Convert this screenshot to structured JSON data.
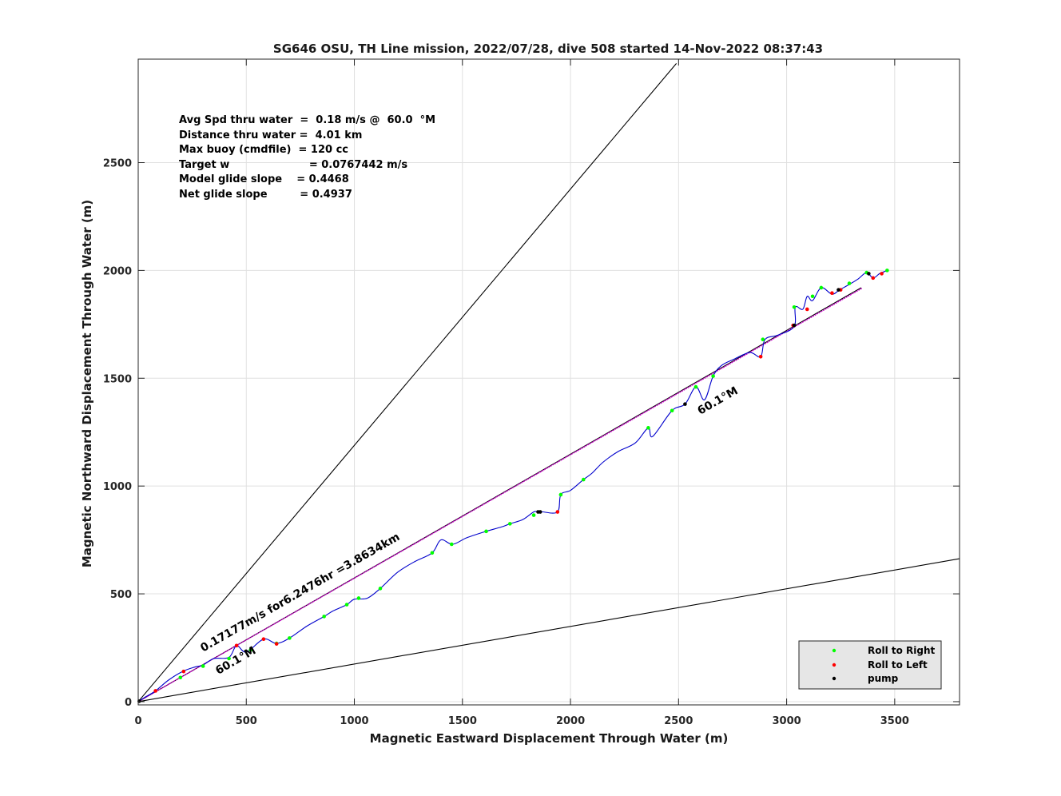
{
  "chart_data": {
    "type": "line",
    "title": "SG646 OSU, TH Line mission, 2022/07/28, dive 508 started 14-Nov-2022 08:37:43",
    "xlabel": "Magnetic Eastward Displacement Through Water (m)",
    "ylabel": "Magnetic Northward Displacement Through Water (m)",
    "xlim": [
      0,
      3800
    ],
    "ylim": [
      -15,
      2980
    ],
    "xticks": [
      0,
      500,
      1000,
      1500,
      2000,
      2500,
      3000,
      3500
    ],
    "yticks": [
      0,
      500,
      1000,
      1500,
      2000,
      2500
    ],
    "grid": true,
    "stats": [
      "Avg Spd thru water  =  0.18 m/s @  60.0  °M",
      "Distance thru water =  4.01 km",
      "Max buoy (cmdfile)  = 120 cc",
      "Target w                      = 0.0767442 m/s",
      "Model glide slope    = 0.4468",
      "Net glide slope         = 0.4937"
    ],
    "annotations": [
      {
        "text": "0.17177m/s for6.2476hr =3.8634km",
        "x": 300,
        "y": 230,
        "angle_deg": 29.8
      },
      {
        "text": "60.1°M",
        "x": 370,
        "y": 125,
        "angle_deg": 29.8
      },
      {
        "text": "60.1°M",
        "x": 2600,
        "y": 1330,
        "angle_deg": 29.8
      }
    ],
    "reference_lines": [
      {
        "name": "upper-bound",
        "x": [
          0,
          2490
        ],
        "y": [
          0,
          2960
        ]
      },
      {
        "name": "lower-bound",
        "x": [
          0,
          3800
        ],
        "y": [
          0,
          663
        ]
      },
      {
        "name": "heading-line",
        "x": [
          0,
          3345
        ],
        "y": [
          0,
          1920
        ]
      },
      {
        "name": "course-line",
        "x": [
          0,
          3350
        ],
        "y": [
          0,
          1918
        ]
      }
    ],
    "series": [
      {
        "type": "line",
        "x": [
          0,
          30,
          80,
          140,
          205,
          260,
          300,
          350,
          420,
          455,
          500,
          580,
          640,
          700,
          780,
          860,
          900,
          965,
          1000,
          1060,
          1120,
          1200,
          1280,
          1360,
          1400,
          1455,
          1520,
          1610,
          1680,
          1720,
          1780,
          1830,
          1850,
          1870,
          1940,
          1955,
          2000,
          2060,
          2100,
          2150,
          2220,
          2300,
          2360,
          2380,
          2470,
          2530,
          2580,
          2620,
          2660,
          2700,
          2760,
          2830,
          2880,
          2900,
          2960,
          3035,
          3040,
          3075,
          3095,
          3120,
          3160,
          3210,
          3245,
          3290,
          3330,
          3370,
          3400,
          3430,
          3465
        ],
        "y": [
          0,
          20,
          50,
          100,
          140,
          160,
          170,
          200,
          205,
          260,
          230,
          290,
          270,
          295,
          350,
          395,
          420,
          450,
          475,
          480,
          525,
          600,
          650,
          690,
          750,
          730,
          760,
          790,
          810,
          825,
          845,
          880,
          880,
          880,
          880,
          960,
          980,
          1030,
          1060,
          1110,
          1160,
          1200,
          1270,
          1230,
          1350,
          1380,
          1460,
          1400,
          1510,
          1560,
          1590,
          1620,
          1600,
          1680,
          1700,
          1740,
          1830,
          1820,
          1880,
          1860,
          1920,
          1890,
          1910,
          1935,
          1960,
          1990,
          1965,
          1985,
          2000
        ]
      },
      {
        "name": "Roll to Right",
        "type": "scatter",
        "color": "#00ff00",
        "x": [
          195,
          300,
          420,
          520,
          640,
          700,
          860,
          965,
          1020,
          1120,
          1360,
          1450,
          1610,
          1720,
          1830,
          1955,
          2060,
          2360,
          2470,
          2580,
          2660,
          2890,
          3035,
          3120,
          3160,
          3290,
          3370,
          3465
        ],
        "y": [
          112,
          165,
          200,
          240,
          270,
          295,
          395,
          450,
          480,
          525,
          690,
          730,
          790,
          825,
          865,
          960,
          1030,
          1270,
          1350,
          1460,
          1510,
          1680,
          1830,
          1880,
          1920,
          1940,
          1990,
          2000
        ]
      },
      {
        "name": "Roll to Left",
        "type": "scatter",
        "color": "#ff0000",
        "x": [
          80,
          210,
          455,
          580,
          640,
          1940,
          2880,
          3030,
          3095,
          3210,
          3250,
          3400,
          3440
        ],
        "y": [
          50,
          140,
          260,
          290,
          268,
          880,
          1600,
          1745,
          1820,
          1895,
          1910,
          1965,
          1985
        ]
      },
      {
        "name": "pump",
        "type": "scatter",
        "color": "#000000",
        "x": [
          5,
          1850,
          1860,
          2530,
          3035,
          3240,
          3380
        ],
        "y": [
          2,
          880,
          880,
          1380,
          1745,
          1910,
          1985
        ]
      }
    ],
    "legend": {
      "placement": "bottom-right",
      "entries": [
        "Roll to Right",
        "Roll to Left",
        "pump"
      ]
    }
  }
}
